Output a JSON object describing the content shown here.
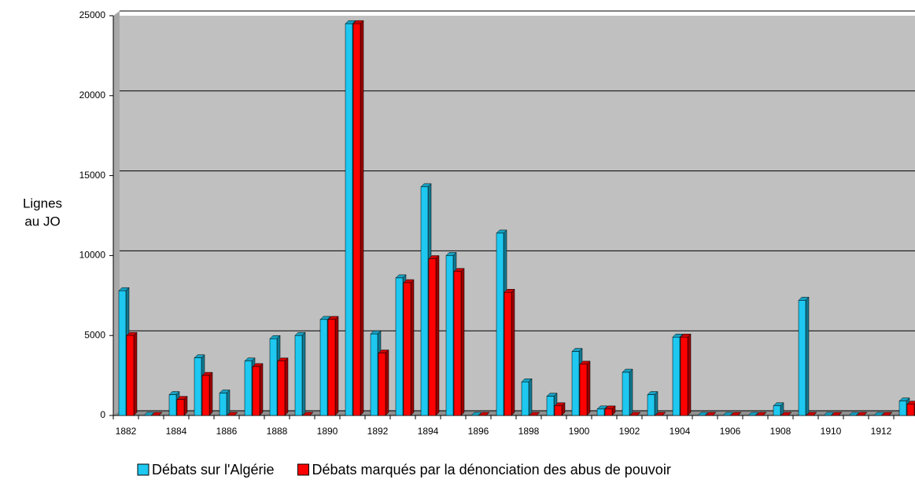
{
  "chart_data": {
    "type": "bar",
    "y_label": [
      "Lignes",
      "au JO"
    ],
    "categories": [
      "1882",
      null,
      "1884",
      null,
      "1886",
      null,
      "1888",
      null,
      "1890",
      null,
      "1892",
      null,
      "1894",
      null,
      "1896",
      null,
      "1898",
      null,
      "1900",
      null,
      "1902",
      null,
      "1904",
      null,
      "1906",
      null,
      "1908",
      null,
      "1910",
      null,
      "1912",
      null
    ],
    "series": [
      {
        "name": "Débats sur l'Algérie",
        "color": "#1ec8f0",
        "values": [
          7800,
          0,
          1300,
          3600,
          1400,
          3400,
          4800,
          5000,
          6000,
          24500,
          5100,
          8600,
          14300,
          10000,
          0,
          11400,
          2100,
          1200,
          4000,
          400,
          2700,
          1300,
          4900,
          0,
          0,
          0,
          600,
          7200,
          0,
          0,
          0,
          900
        ]
      },
      {
        "name": "Débats marqués par la dénonciation des abus de pouvoir",
        "color": "#ff0000",
        "values": [
          5000,
          0,
          1000,
          2500,
          0,
          3050,
          3400,
          0,
          6000,
          24500,
          3900,
          8300,
          9800,
          9000,
          0,
          7700,
          0,
          600,
          3200,
          400,
          0,
          0,
          4900,
          0,
          0,
          0,
          0,
          0,
          0,
          0,
          0,
          700
        ]
      }
    ],
    "ylim": [
      0,
      25000
    ],
    "yticks": [
      0,
      5000,
      10000,
      15000,
      20000,
      25000
    ],
    "grid": true,
    "legend": "bottom"
  }
}
